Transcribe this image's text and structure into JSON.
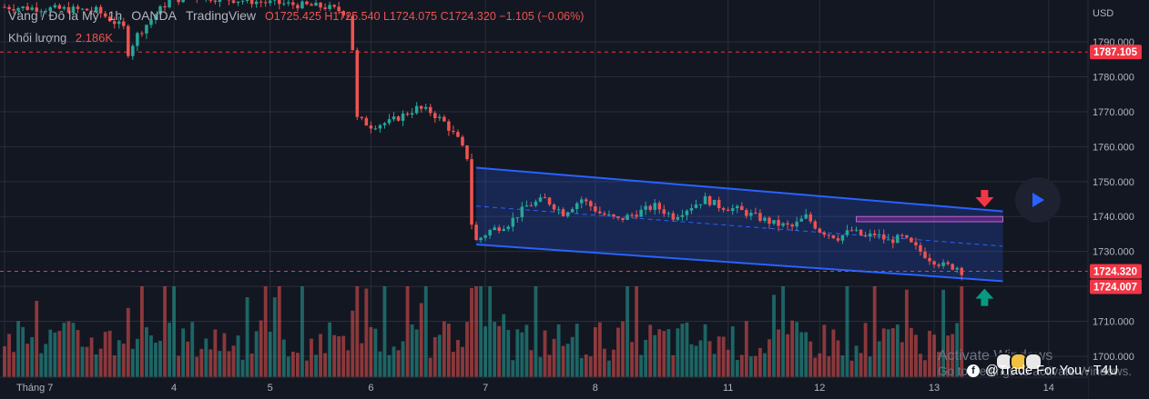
{
  "legend": {
    "symbol": "Vàng / Đô la Mỹ",
    "interval": "1h",
    "broker": "OANDA",
    "platform": "TradingView",
    "open": "O1725.425",
    "high": "H1725.540",
    "low": "L1724.075",
    "close": "C1724.320",
    "change": "−1.105 (−0.06%)"
  },
  "volume": {
    "label": "Khối lượng",
    "value": "2.186K"
  },
  "currency": "USD",
  "price_labels": [
    {
      "text": "1787.105",
      "value": 1787.105,
      "color": "#f23645"
    },
    {
      "text": "1724.320",
      "value": 1724.32,
      "color": "#f23645"
    },
    {
      "text": "1724.007",
      "value": 1724.007,
      "color": "#f23645"
    }
  ],
  "watermark": {
    "line1": "Activate Windows",
    "line2": "Go to Settings to activate Windows."
  },
  "brand": "@Trade For You - T4U",
  "colors": {
    "up": "#26a69a",
    "down": "#ef5350",
    "channel": "#2962ff",
    "zone": "#9c27b0",
    "background": "#131722"
  },
  "icons": [
    "down-arrow-icon",
    "up-arrow-icon",
    "play-icon",
    "facebook-icon"
  ],
  "chart_data": {
    "type": "candlestick",
    "ylim": [
      1694,
      1802
    ],
    "y_ticks": [
      1700,
      1710,
      1720,
      1730,
      1740,
      1750,
      1760,
      1770,
      1780,
      1790
    ],
    "y_tick_labels": [
      "1700.000",
      "1710.000",
      "1720.000",
      "1730.000",
      "1740.000",
      "1750.000",
      "1760.000",
      "1770.000",
      "1780.000",
      "1790.000"
    ],
    "x_ticks": [
      {
        "label": "Tháng 7",
        "index": 0
      },
      {
        "label": "4",
        "index": 37
      },
      {
        "label": "5",
        "index": 58
      },
      {
        "label": "6",
        "index": 80
      },
      {
        "label": "7",
        "index": 105
      },
      {
        "label": "8",
        "index": 129
      },
      {
        "label": "11",
        "index": 158
      },
      {
        "label": "12",
        "index": 178
      },
      {
        "label": "13",
        "index": 203
      },
      {
        "label": "14",
        "index": 228
      }
    ],
    "close_path": [
      [
        0,
        1800
      ],
      [
        20,
        1799
      ],
      [
        26,
        1794
      ],
      [
        27,
        1787
      ],
      [
        29,
        1792
      ],
      [
        33,
        1798
      ],
      [
        36,
        1802
      ],
      [
        42,
        1803
      ],
      [
        60,
        1801
      ],
      [
        70,
        1800
      ],
      [
        73,
        1799
      ],
      [
        75,
        1798
      ],
      [
        76,
        1788
      ],
      [
        77,
        1768
      ],
      [
        80,
        1766
      ],
      [
        84,
        1767
      ],
      [
        87,
        1769
      ],
      [
        90,
        1771
      ],
      [
        93,
        1770
      ],
      [
        96,
        1767
      ],
      [
        99,
        1762
      ],
      [
        101,
        1757
      ],
      [
        102,
        1738
      ],
      [
        103,
        1733
      ],
      [
        106,
        1736
      ],
      [
        110,
        1738
      ],
      [
        114,
        1743
      ],
      [
        118,
        1745
      ],
      [
        122,
        1741
      ],
      [
        126,
        1745
      ],
      [
        130,
        1741
      ],
      [
        134,
        1739
      ],
      [
        138,
        1741
      ],
      [
        142,
        1743
      ],
      [
        146,
        1740
      ],
      [
        150,
        1743
      ],
      [
        153,
        1745
      ],
      [
        156,
        1743
      ],
      [
        160,
        1742
      ],
      [
        164,
        1740
      ],
      [
        168,
        1738
      ],
      [
        172,
        1737
      ],
      [
        175,
        1740
      ],
      [
        178,
        1736
      ],
      [
        182,
        1734
      ],
      [
        185,
        1736
      ],
      [
        188,
        1734
      ],
      [
        190,
        1735
      ],
      [
        193,
        1733
      ],
      [
        196,
        1734
      ],
      [
        199,
        1731
      ],
      [
        202,
        1728
      ],
      [
        205,
        1726
      ],
      [
        208,
        1725.5
      ],
      [
        209,
        1724.32
      ]
    ],
    "channel": {
      "upper": [
        [
          103,
          1754
        ],
        [
          218,
          1741.5
        ]
      ],
      "lower": [
        [
          103,
          1732
        ],
        [
          218,
          1721.5
        ]
      ],
      "mid": [
        [
          103,
          1743
        ],
        [
          218,
          1731.5
        ]
      ]
    },
    "resistance_zone": {
      "y_low": 1738.5,
      "y_high": 1740,
      "x_start": 186,
      "x_end": 218
    },
    "horizontal_lines": [
      1787.105,
      1724.32
    ],
    "annotations": [
      {
        "type": "arrow-down",
        "index": 214,
        "price": 1745,
        "color": "#f23645"
      },
      {
        "type": "arrow-up",
        "index": 214,
        "price": 1717,
        "color": "#089981"
      }
    ]
  }
}
